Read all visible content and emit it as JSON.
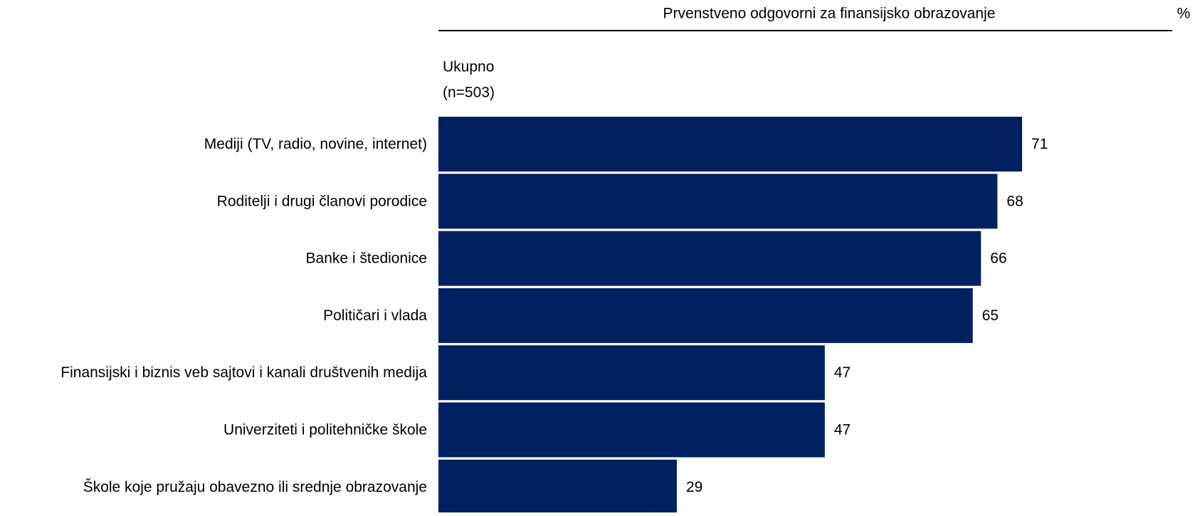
{
  "chart_data": {
    "type": "bar",
    "orientation": "horizontal",
    "title": "Prvenstveno odgovorni za finansijsko obrazovanje",
    "unit_label": "%",
    "group_label": "Ukupno",
    "group_n": "(n=503)",
    "categories": [
      "Mediji (TV, radio, novine, internet)",
      "Roditelji i drugi članovi porodice",
      "Banke i štedionice",
      "Političari i vlada",
      "Finansijski i biznis veb sajtovi i kanali društvenih medija",
      "Univerziteti i politehničke škole",
      "Škole koje pružaju obavezno ili srednje obrazovanje"
    ],
    "values": [
      71,
      68,
      66,
      65,
      47,
      47,
      29
    ],
    "color": "#002060"
  }
}
